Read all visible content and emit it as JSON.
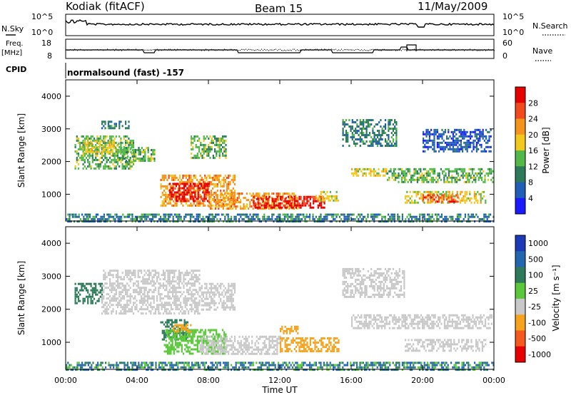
{
  "header": {
    "station": "Kodiak (fitACF)",
    "beam": "Beam 15",
    "date": "11/May/2009"
  },
  "top_panels": {
    "nsky": {
      "left_label": "N.Sky",
      "left_ticks": [
        "10^5",
        "10^0"
      ],
      "right_label": "N.Search",
      "right_ticks": [
        "10^5",
        "10^0"
      ]
    },
    "freq": {
      "left_label_1": "Freq.",
      "left_label_2": "[MHz]",
      "left_ticks": [
        "18",
        "8"
      ],
      "right_label": "Nave",
      "right_ticks": [
        "60",
        "0"
      ]
    },
    "cpid": {
      "label": "CPID",
      "mode": "normalsound (fast) -157"
    }
  },
  "chart_data": [
    {
      "type": "heatmap",
      "name": "power",
      "ylabel": "Slant Range [km]",
      "xlabel": "",
      "x_ticks": [
        "00:00",
        "04:00",
        "08:00",
        "12:00",
        "16:00",
        "20:00",
        "00:00"
      ],
      "xlim": [
        0,
        24
      ],
      "y_ticks": [
        "1000",
        "2000",
        "3000",
        "4000"
      ],
      "ylim": [
        180,
        4500
      ],
      "colorbar": {
        "label": "Power [dB]",
        "ticks": [
          "4",
          "8",
          "12",
          "16",
          "20",
          "24",
          "28"
        ],
        "colors": [
          "#1a1aff",
          "#1f5fb8",
          "#2d7a5a",
          "#52b848",
          "#f2c81c",
          "#f5941c",
          "#f24a1c",
          "#e60000"
        ]
      },
      "regions": [
        {
          "t0": 0.5,
          "t1": 3.8,
          "r0": 1800,
          "r1": 2800,
          "level": 3
        },
        {
          "t0": 1.0,
          "t1": 3.0,
          "r0": 2300,
          "r1": 2650,
          "level": 4
        },
        {
          "t0": 2.0,
          "t1": 3.5,
          "r0": 3050,
          "r1": 3250,
          "level": 2
        },
        {
          "t0": 3.0,
          "t1": 5.0,
          "r0": 2050,
          "r1": 2450,
          "level": 3
        },
        {
          "t0": 5.3,
          "t1": 9.5,
          "r0": 650,
          "r1": 1600,
          "level": 5
        },
        {
          "t0": 5.8,
          "t1": 8.0,
          "r0": 800,
          "r1": 1350,
          "level": 7
        },
        {
          "t0": 7.0,
          "t1": 9.0,
          "r0": 2100,
          "r1": 2800,
          "level": 3
        },
        {
          "t0": 8.0,
          "t1": 13.0,
          "r0": 550,
          "r1": 1050,
          "level": 5
        },
        {
          "t0": 10.5,
          "t1": 14.5,
          "r0": 600,
          "r1": 950,
          "level": 7
        },
        {
          "t0": 14.0,
          "t1": 15.3,
          "r0": 800,
          "r1": 1100,
          "level": 4
        },
        {
          "t0": 15.5,
          "t1": 18.5,
          "r0": 2450,
          "r1": 3300,
          "level": 2
        },
        {
          "t0": 16.0,
          "t1": 18.0,
          "r0": 1550,
          "r1": 1800,
          "level": 4
        },
        {
          "t0": 18.0,
          "t1": 23.9,
          "r0": 1400,
          "r1": 1800,
          "level": 3
        },
        {
          "t0": 19.0,
          "t1": 23.5,
          "r0": 750,
          "r1": 1100,
          "level": 4
        },
        {
          "t0": 20.0,
          "t1": 22.0,
          "r0": 800,
          "r1": 1000,
          "level": 6
        },
        {
          "t0": 20.0,
          "t1": 23.8,
          "r0": 2300,
          "r1": 3000,
          "level": 1
        }
      ]
    },
    {
      "type": "heatmap",
      "name": "velocity",
      "ylabel": "Slant Range [km]",
      "xlabel": "Time UT",
      "x_ticks": [
        "00:00",
        "04:00",
        "08:00",
        "12:00",
        "16:00",
        "20:00",
        "00:00"
      ],
      "xlim": [
        0,
        24
      ],
      "y_ticks": [
        "1000",
        "2000",
        "3000",
        "4000"
      ],
      "ylim": [
        180,
        4500
      ],
      "colorbar": {
        "label": "Velocity [m s⁻¹]",
        "ticks": [
          "1000",
          "500",
          "100",
          "25",
          "-25",
          "-100",
          "-500",
          "-1000"
        ],
        "colors": [
          "#1a3ab8",
          "#2266b0",
          "#2d7a5a",
          "#5ac83a",
          "#c8c8c8",
          "#f5a21c",
          "#f55a1c",
          "#e60000"
        ]
      },
      "regions": [
        {
          "t0": 0.5,
          "t1": 2.0,
          "r0": 2200,
          "r1": 2800,
          "class": 2
        },
        {
          "t0": 2.0,
          "t1": 7.5,
          "r0": 1850,
          "r1": 3200,
          "class": 4
        },
        {
          "t0": 5.3,
          "t1": 6.8,
          "r0": 1100,
          "r1": 1700,
          "class": 2
        },
        {
          "t0": 5.5,
          "t1": 9.0,
          "r0": 650,
          "r1": 1400,
          "class": 3
        },
        {
          "t0": 6.0,
          "t1": 7.0,
          "r0": 1300,
          "r1": 1550,
          "class": 5
        },
        {
          "t0": 7.5,
          "t1": 12.0,
          "r0": 650,
          "r1": 1200,
          "class": 4
        },
        {
          "t0": 7.5,
          "t1": 9.5,
          "r0": 2000,
          "r1": 2800,
          "class": 4
        },
        {
          "t0": 12.0,
          "t1": 15.3,
          "r0": 750,
          "r1": 1150,
          "class": 5
        },
        {
          "t0": 12.0,
          "t1": 13.0,
          "r0": 1300,
          "r1": 1500,
          "class": 5
        },
        {
          "t0": 15.5,
          "t1": 19.0,
          "r0": 2400,
          "r1": 3250,
          "class": 4
        },
        {
          "t0": 16.0,
          "t1": 23.9,
          "r0": 1400,
          "r1": 1850,
          "class": 4
        },
        {
          "t0": 19.0,
          "t1": 23.5,
          "r0": 750,
          "r1": 1100,
          "class": 4
        }
      ]
    }
  ]
}
